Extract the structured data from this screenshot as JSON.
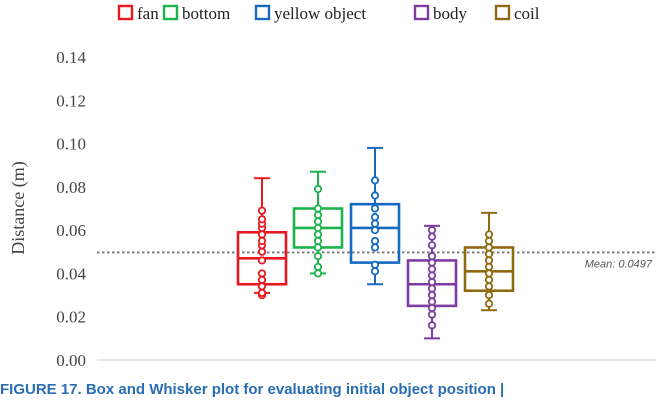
{
  "chart_data": {
    "type": "box",
    "ylabel": "Distance (m)",
    "ylim": [
      0,
      0.14
    ],
    "yticks": [
      "0.00",
      "0.02",
      "0.04",
      "0.06",
      "0.08",
      "0.10",
      "0.12",
      "0.14"
    ],
    "grid": false,
    "legend_position": "top",
    "mean_line": {
      "value": 0.0497,
      "label": "Mean: 0.0497",
      "color": "#777777"
    },
    "series": [
      {
        "name": "fan",
        "color": "#e8191f",
        "whisker_low": 0.031,
        "q1": 0.035,
        "median": 0.047,
        "q3": 0.059,
        "whisker_high": 0.084,
        "points": [
          0.03,
          0.031,
          0.034,
          0.037,
          0.04,
          0.046,
          0.05,
          0.053,
          0.055,
          0.058,
          0.061,
          0.063,
          0.065,
          0.069
        ]
      },
      {
        "name": "bottom",
        "color": "#1db44b",
        "whisker_low": 0.04,
        "q1": 0.052,
        "median": 0.061,
        "q3": 0.07,
        "whisker_high": 0.087,
        "points": [
          0.04,
          0.043,
          0.048,
          0.052,
          0.055,
          0.058,
          0.061,
          0.064,
          0.067,
          0.07,
          0.079
        ]
      },
      {
        "name": "yellow object",
        "color": "#1769c1",
        "whisker_low": 0.035,
        "q1": 0.045,
        "median": 0.061,
        "q3": 0.072,
        "whisker_high": 0.098,
        "points": [
          0.041,
          0.044,
          0.052,
          0.055,
          0.06,
          0.063,
          0.066,
          0.07,
          0.076,
          0.083
        ]
      },
      {
        "name": "body",
        "color": "#7d3ca1",
        "whisker_low": 0.01,
        "q1": 0.025,
        "median": 0.035,
        "q3": 0.046,
        "whisker_high": 0.062,
        "points": [
          0.016,
          0.021,
          0.024,
          0.027,
          0.03,
          0.033,
          0.036,
          0.039,
          0.042,
          0.045,
          0.048,
          0.053,
          0.057,
          0.06
        ]
      },
      {
        "name": "coil",
        "color": "#8f6a11",
        "whisker_low": 0.023,
        "q1": 0.032,
        "median": 0.041,
        "q3": 0.052,
        "whisker_high": 0.068,
        "points": [
          0.026,
          0.03,
          0.034,
          0.037,
          0.04,
          0.043,
          0.046,
          0.049,
          0.052,
          0.055,
          0.058
        ]
      }
    ]
  },
  "caption": "FIGURE 17.  Box and Whisker plot for evaluating initial object position |"
}
